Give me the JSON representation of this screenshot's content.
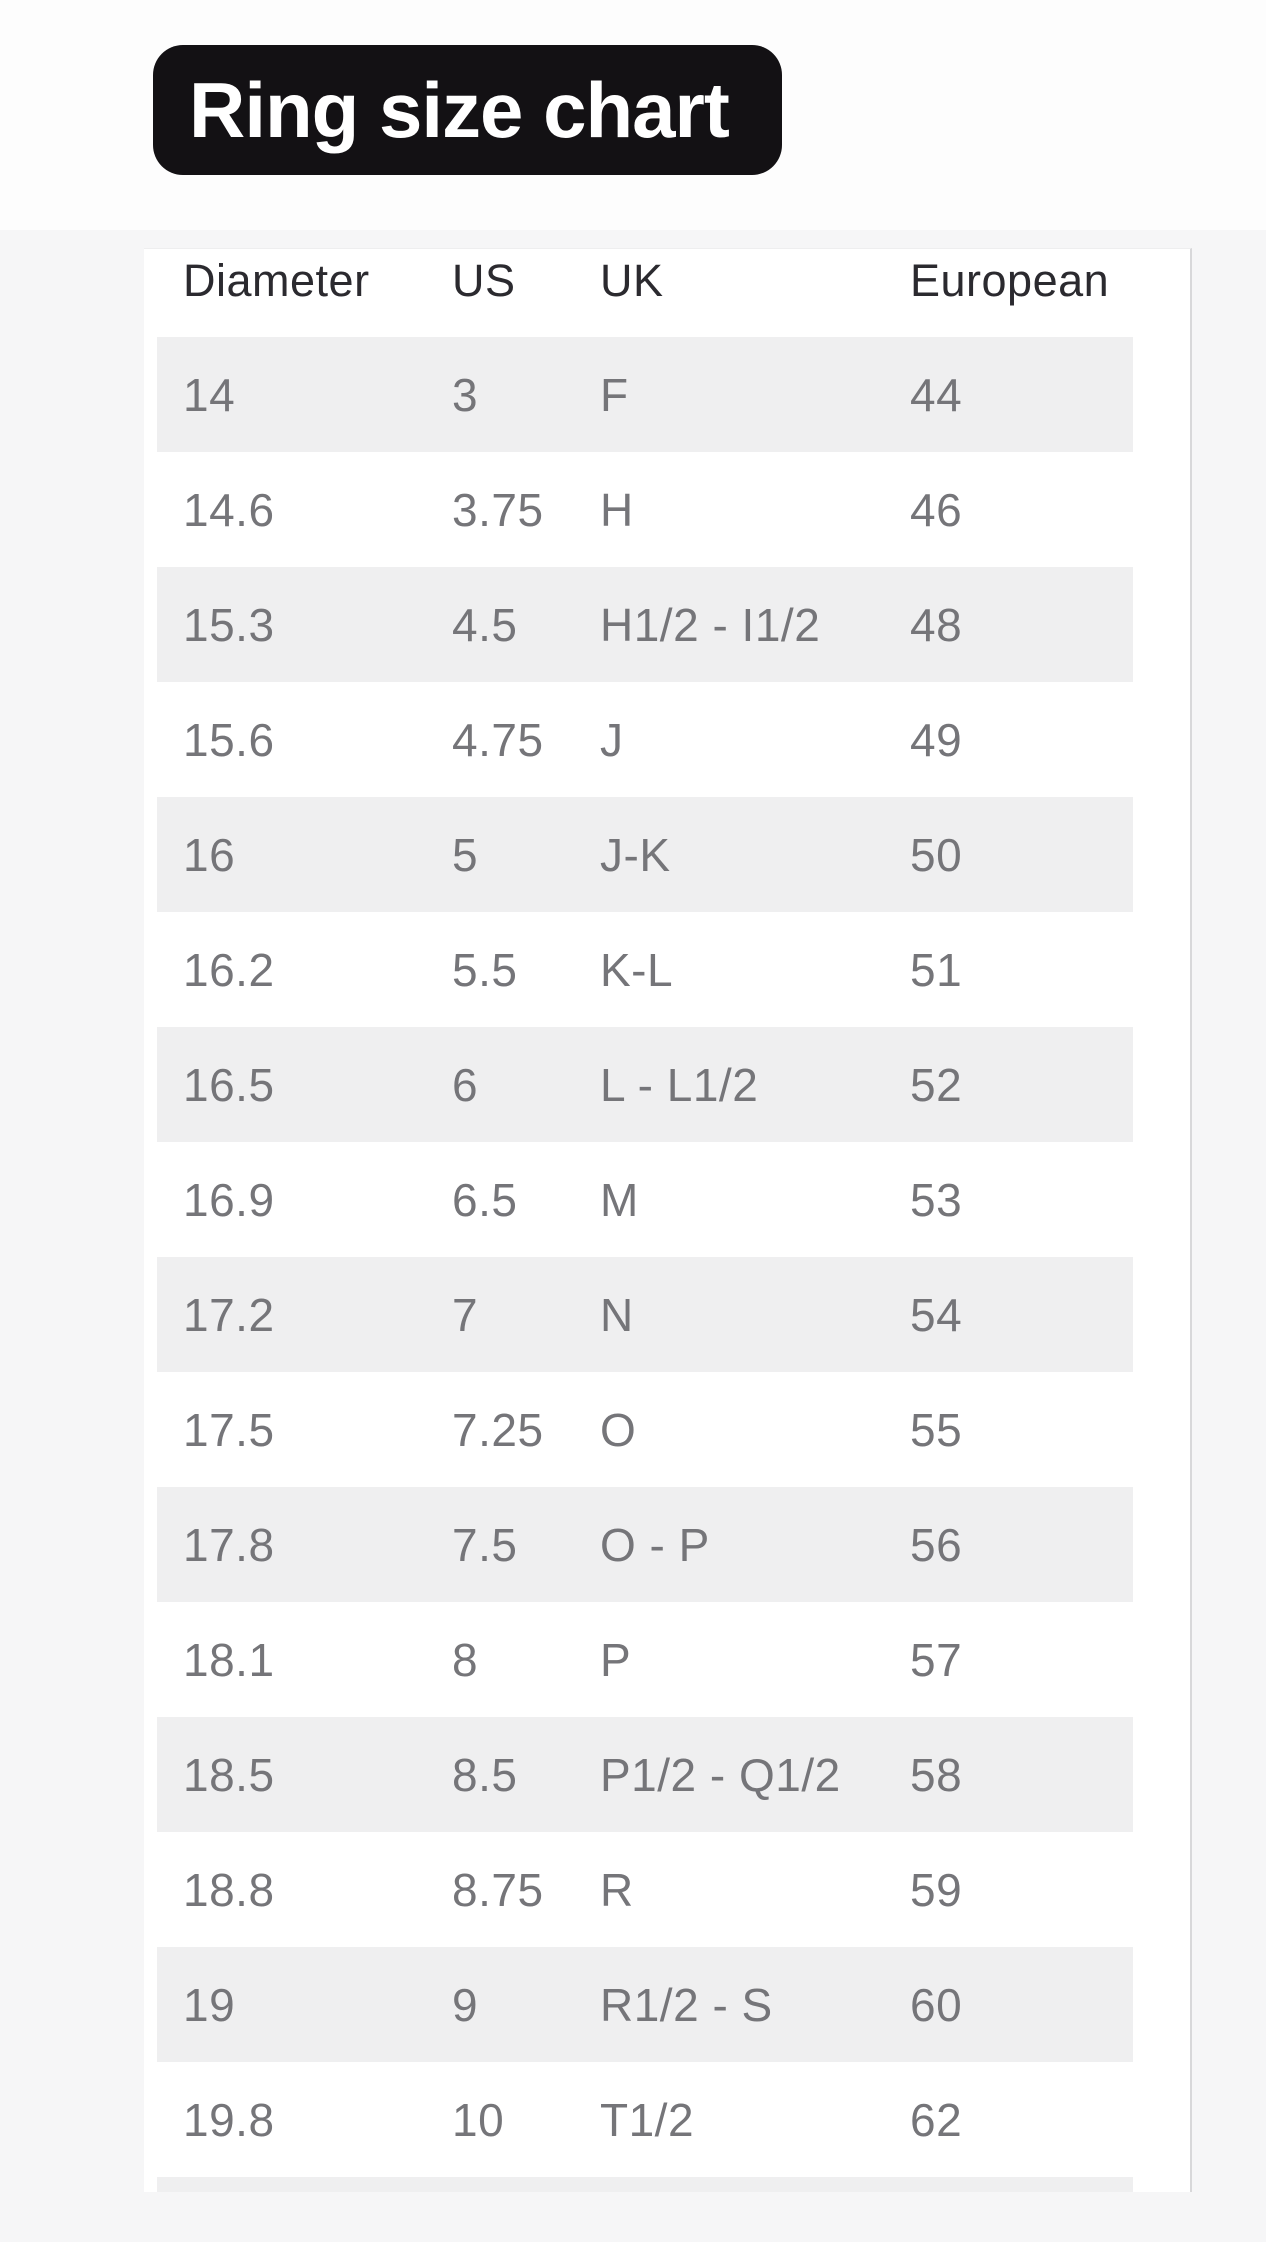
{
  "title_badge": {
    "label": "Ring size chart"
  },
  "table": {
    "headers": [
      "Diameter",
      "US",
      "UK",
      "European"
    ],
    "column_keys": [
      "diameter",
      "us",
      "uk",
      "european"
    ],
    "rows": [
      [
        "14",
        "3",
        "F",
        "44"
      ],
      [
        "14.6",
        "3.75",
        "H",
        "46"
      ],
      [
        "15.3",
        "4.5",
        "H1/2 - I1/2",
        "48"
      ],
      [
        "15.6",
        "4.75",
        "J",
        "49"
      ],
      [
        "16",
        "5",
        "J-K",
        "50"
      ],
      [
        "16.2",
        "5.5",
        "K-L",
        "51"
      ],
      [
        "16.5",
        "6",
        "L - L1/2",
        "52"
      ],
      [
        "16.9",
        "6.5",
        "M",
        "53"
      ],
      [
        "17.2",
        "7",
        "N",
        "54"
      ],
      [
        "17.5",
        "7.25",
        "O",
        "55"
      ],
      [
        "17.8",
        "7.5",
        "O - P",
        "56"
      ],
      [
        "18.1",
        "8",
        "P",
        "57"
      ],
      [
        "18.5",
        "8.5",
        "P1/2 - Q1/2",
        "58"
      ],
      [
        "18.8",
        "8.75",
        "R",
        "59"
      ],
      [
        "19",
        "9",
        "R1/2 - S",
        "60"
      ],
      [
        "19.8",
        "10",
        "T1/2",
        "62"
      ]
    ]
  },
  "colors": {
    "page_bg": "#f6f6f7",
    "top_band_bg": "#fdfdfd",
    "badge_bg": "#131114",
    "badge_text": "#ffffff",
    "card_bg": "#ffffff",
    "card_border": "#d8d8da",
    "stripe": "#efeff0",
    "header_text": "#2b2a2f",
    "cell_text": "#757579"
  }
}
